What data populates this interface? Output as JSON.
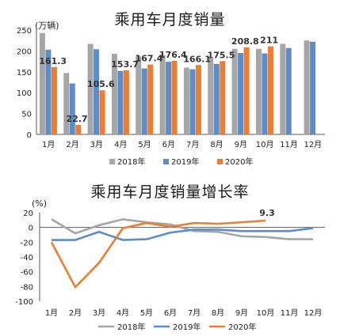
{
  "chart_data": [
    {
      "type": "bar",
      "title": "乘用车月度销量",
      "ylabel": "(万辆)",
      "ylim": [
        0,
        250
      ],
      "yticks": [
        0,
        50,
        100,
        150,
        200,
        250
      ],
      "categories": [
        "1月",
        "2月",
        "3月",
        "4月",
        "5月",
        "6月",
        "7月",
        "8月",
        "9月",
        "10月",
        "11月",
        "12月"
      ],
      "series": [
        {
          "name": "2018年",
          "color": "#a6a6a6",
          "values": [
            243,
            147,
            217,
            193,
            187,
            190,
            160,
            182,
            205,
            205,
            217,
            225
          ]
        },
        {
          "name": "2019年",
          "color": "#5b8ec9",
          "values": [
            203,
            122,
            204,
            152,
            158,
            174,
            156,
            169,
            195,
            194,
            207,
            222
          ]
        },
        {
          "name": "2020年",
          "color": "#ed7d31",
          "values": [
            161.3,
            22.7,
            105.6,
            153.7,
            167.4,
            176.4,
            166.1,
            175.5,
            208.8,
            211,
            null,
            null
          ]
        }
      ],
      "data_labels": [
        "161.3",
        "22.7",
        "105.6",
        "153.7",
        "167.4",
        "176.4",
        "166.1",
        "175.5",
        "208.8",
        "211"
      ],
      "legend_position": "bottom",
      "grid": false
    },
    {
      "type": "line",
      "title": "乘用车月度销量增长率",
      "ylabel": "(%)",
      "ylim": [
        -100,
        20
      ],
      "yticks": [
        20,
        0,
        -20,
        -40,
        -60,
        -80,
        -100
      ],
      "categories": [
        "1月",
        "2月",
        "3月",
        "4月",
        "5月",
        "6月",
        "7月",
        "8月",
        "9月",
        "10月",
        "11月",
        "12月"
      ],
      "series": [
        {
          "name": "2018年",
          "color": "#a6a6a6",
          "values": [
            11,
            -8,
            3,
            11,
            7,
            4,
            -5,
            -6,
            -12,
            -13,
            -16,
            -16
          ]
        },
        {
          "name": "2019年",
          "color": "#5b8ec9",
          "values": [
            -17,
            -17,
            -6,
            -17,
            -16,
            -7,
            -3,
            -3,
            -5,
            -5,
            -5,
            -1
          ]
        },
        {
          "name": "2020年",
          "color": "#ed7d31",
          "values": [
            -20,
            -81,
            -48,
            -1,
            6,
            1,
            6,
            5,
            7,
            9.3,
            null,
            null
          ]
        }
      ],
      "data_labels": [
        "9.3"
      ],
      "legend_position": "bottom",
      "grid": false
    }
  ]
}
